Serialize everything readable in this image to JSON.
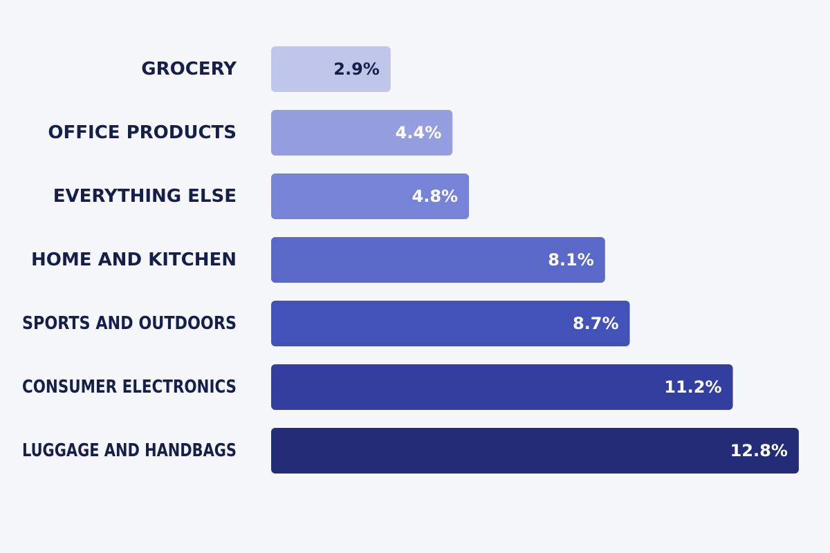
{
  "chart_data": {
    "type": "bar",
    "orientation": "horizontal",
    "title": "",
    "xlabel": "",
    "ylabel": "",
    "categories": [
      "GROCERY",
      "OFFICE PRODUCTS",
      "EVERYTHING ELSE",
      "HOME AND KITCHEN",
      "SPORTS AND OUTDOORS",
      "CONSUMER ELECTRONICS",
      "LUGGAGE AND HANDBAGS"
    ],
    "values": [
      2.9,
      4.4,
      4.8,
      8.1,
      8.7,
      11.2,
      12.8
    ],
    "value_labels": [
      "2.9%",
      "4.4%",
      "4.8%",
      "8.1%",
      "8.7%",
      "11.2%",
      "12.8%"
    ],
    "bar_colors": [
      "#c0c5ea",
      "#959fe0",
      "#7683d6",
      "#5a68c8",
      "#4352b8",
      "#323f9e",
      "#232c77"
    ],
    "value_label_colors": [
      "#161e4a",
      "#ffffff",
      "#ffffff",
      "#ffffff",
      "#ffffff",
      "#ffffff",
      "#ffffff"
    ],
    "grid": false,
    "legend": "none"
  }
}
